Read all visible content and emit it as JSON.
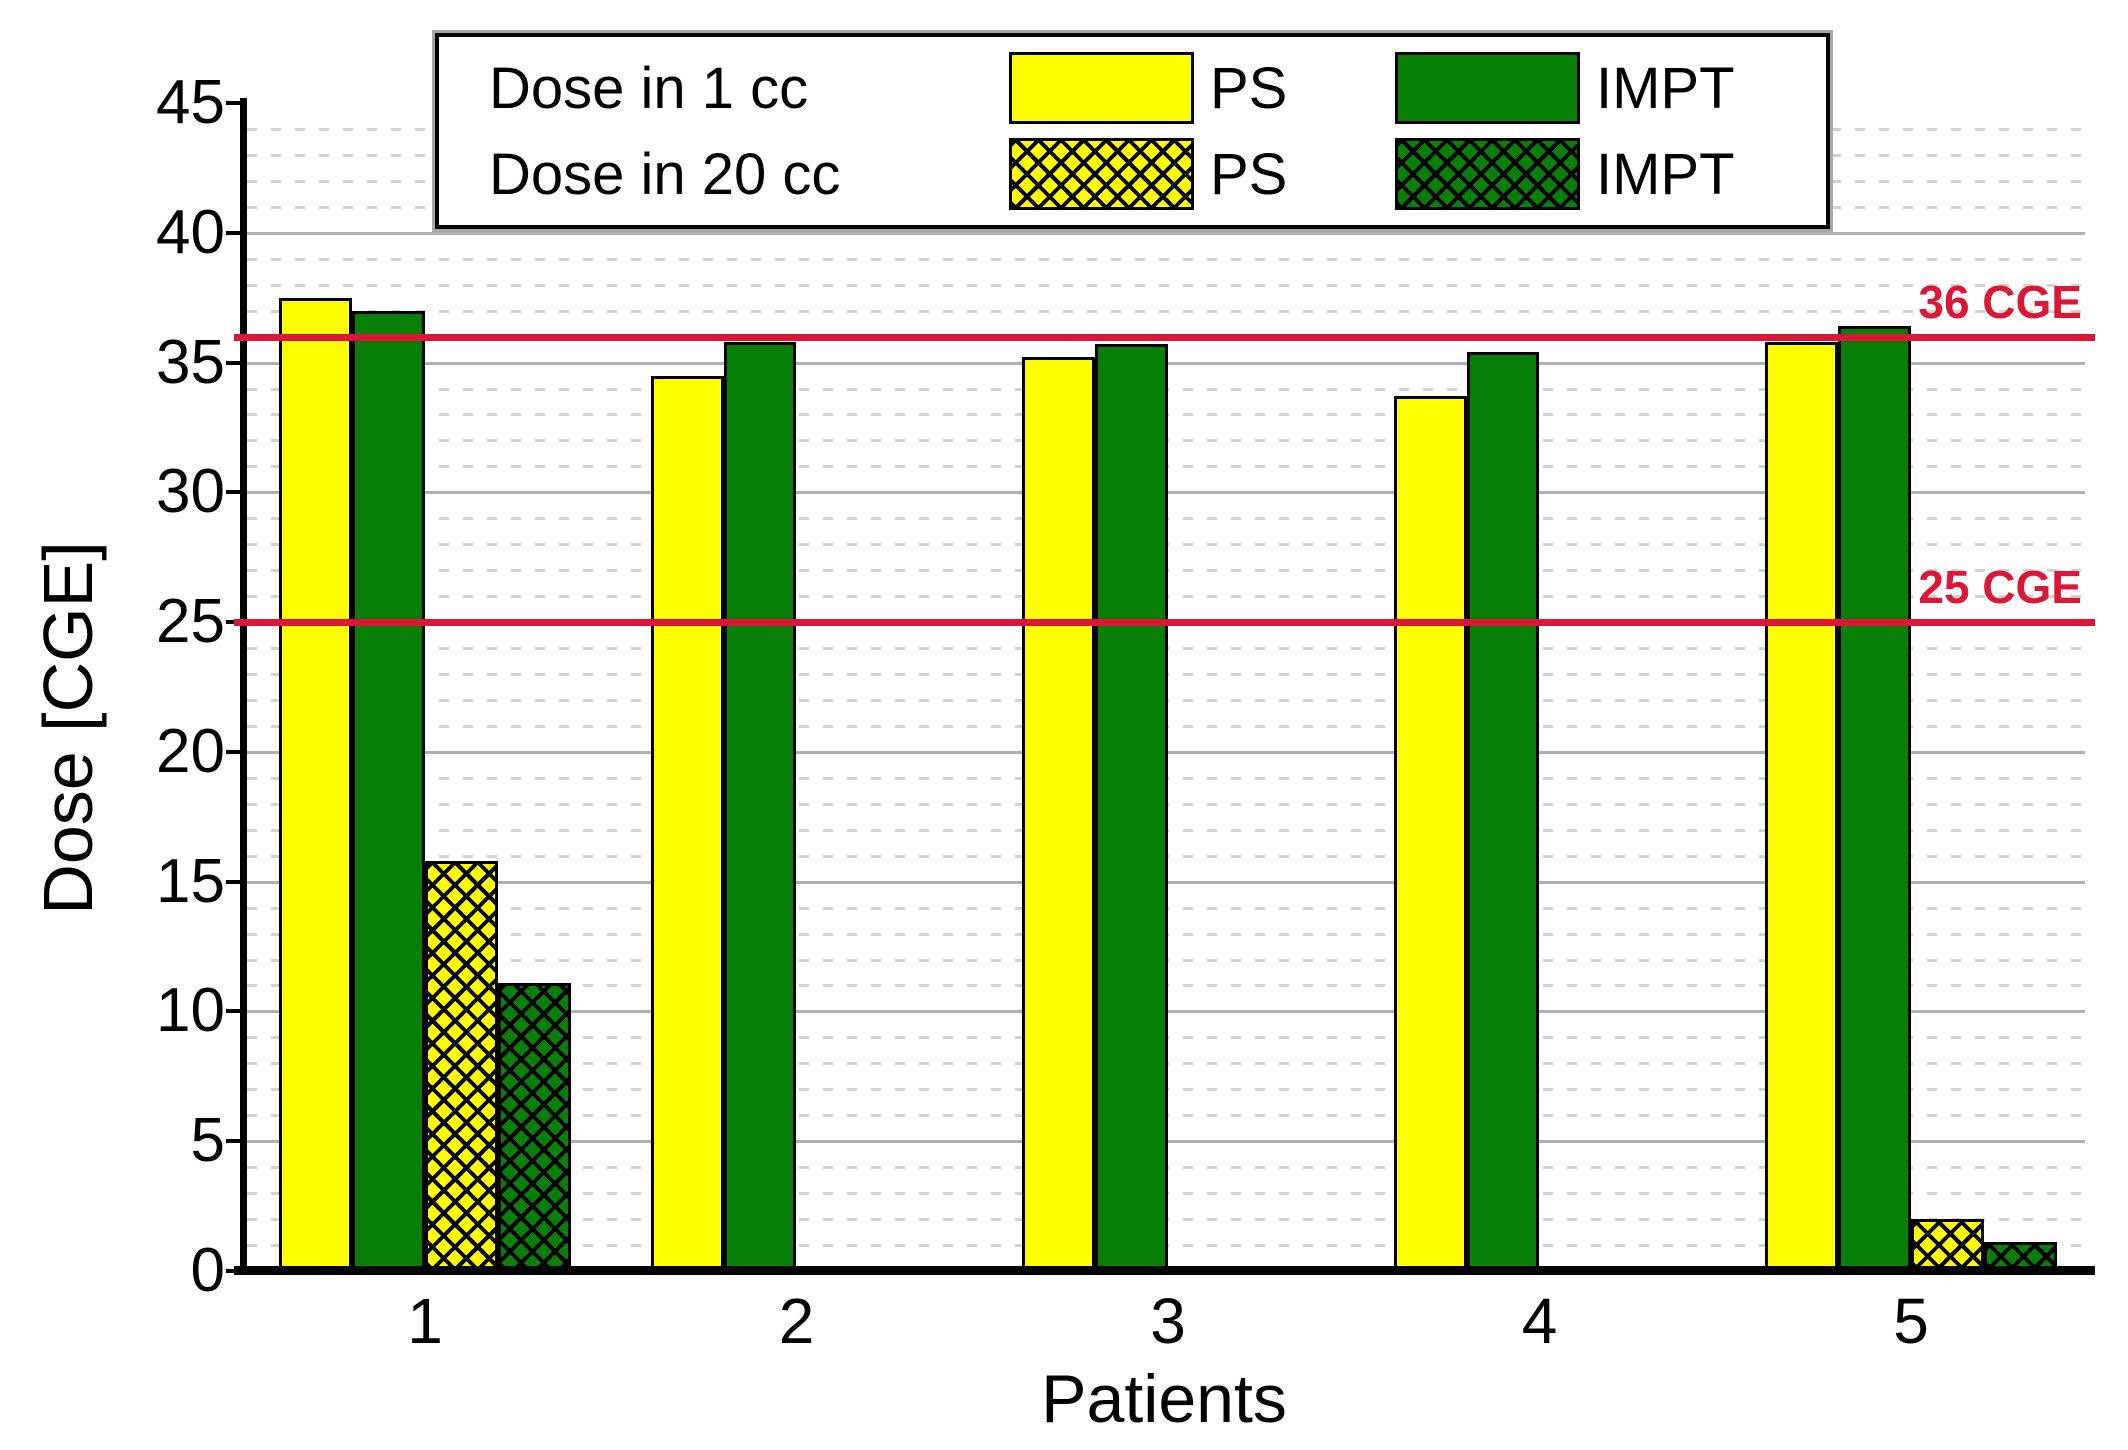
{
  "chart_data": {
    "type": "bar",
    "title": "",
    "xlabel": "Patients",
    "ylabel": "Dose [CGE]",
    "ylim": [
      0,
      45
    ],
    "ytick_labels": [
      "0",
      "5",
      "10",
      "15",
      "20",
      "25",
      "30",
      "35",
      "40",
      "45"
    ],
    "minor_grid_step": 1,
    "grid": "major solid, minor dashed, horizontal only",
    "legend_position": "top center, framed box",
    "categories": [
      "1",
      "2",
      "3",
      "4",
      "5"
    ],
    "series": [
      {
        "name": "Dose in 1 cc PS",
        "group": "Dose in 1 cc",
        "label": "PS",
        "style": "solid",
        "color": "#ffff00",
        "values": [
          37.5,
          34.5,
          35.2,
          33.7,
          35.8
        ]
      },
      {
        "name": "Dose in 1 cc IMPT",
        "group": "Dose in 1 cc",
        "label": "IMPT",
        "style": "solid",
        "color": "#088008",
        "values": [
          37.0,
          35.8,
          35.7,
          35.4,
          36.4
        ]
      },
      {
        "name": "Dose in 20 cc PS",
        "group": "Dose in 20 cc",
        "label": "PS",
        "style": "crosshatch",
        "color": "#ffff00",
        "values": [
          15.8,
          null,
          null,
          null,
          2.0
        ]
      },
      {
        "name": "Dose in 20 cc IMPT",
        "group": "Dose in 20 cc",
        "label": "IMPT",
        "style": "crosshatch",
        "color": "#088008",
        "values": [
          11.1,
          null,
          null,
          null,
          1.1
        ]
      }
    ],
    "reference_lines": [
      {
        "value": 36,
        "label": "36 CGE"
      },
      {
        "value": 25,
        "label": "25 CGE"
      }
    ],
    "colors": {
      "reference": "#dc1637",
      "grid_major": "#b0b0b0",
      "grid_minor": "#d2d2d2",
      "axis": "#000000",
      "ps": "#ffff00",
      "impt": "#088008"
    },
    "legend": {
      "rows": [
        {
          "label": "Dose in 1 cc",
          "entries": [
            {
              "name": "PS",
              "style": "solid",
              "color": "#ffff00"
            },
            {
              "name": "IMPT",
              "style": "solid",
              "color": "#088008"
            }
          ]
        },
        {
          "label": "Dose in 20 cc",
          "entries": [
            {
              "name": "PS",
              "style": "crosshatch",
              "color": "#ffff00"
            },
            {
              "name": "IMPT",
              "style": "crosshatch",
              "color": "#088008"
            }
          ]
        }
      ]
    }
  }
}
